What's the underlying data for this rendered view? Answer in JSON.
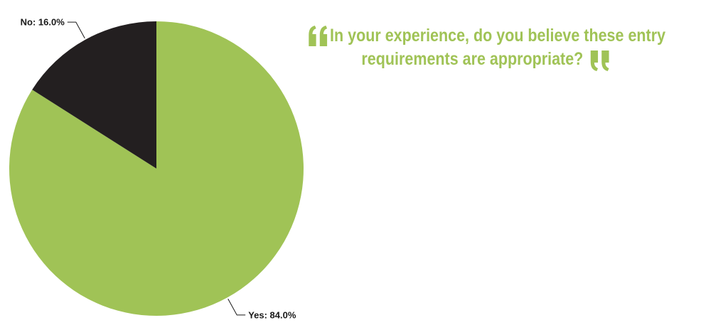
{
  "question": {
    "line1": "In your experience, do you believe these entry",
    "line2": "requirements are appropriate?"
  },
  "colors": {
    "yes": "#a0c356",
    "no": "#231f20",
    "accent": "#a0c356",
    "label": "#1a1a1a"
  },
  "chart_data": {
    "type": "pie",
    "title": "In your experience, do you believe these entry requirements are appropriate?",
    "slices": [
      {
        "name": "Yes",
        "value": 84.0,
        "label": "Yes: 84.0%",
        "color": "#a0c356"
      },
      {
        "name": "No",
        "value": 16.0,
        "label": "No: 16.0%",
        "color": "#231f20"
      }
    ]
  }
}
